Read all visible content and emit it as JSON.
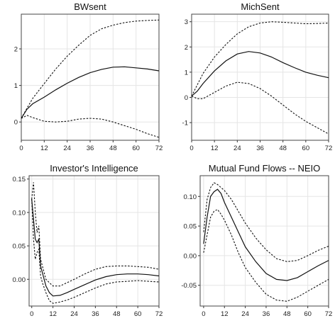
{
  "chart_data": [
    {
      "type": "line",
      "title": "BWsent",
      "x": [
        0,
        3,
        6,
        12,
        18,
        24,
        30,
        36,
        42,
        48,
        54,
        60,
        66,
        72
      ],
      "xlim": [
        0,
        72
      ],
      "ylim": [
        -0.5,
        2.95
      ],
      "xticks": [
        "0",
        "12",
        "24",
        "36",
        "48",
        "60",
        "72"
      ],
      "yticks": [
        "0",
        "1",
        "2"
      ],
      "grid": true,
      "series": [
        {
          "style": "solid",
          "values": [
            0.1,
            0.35,
            0.5,
            0.68,
            0.88,
            1.06,
            1.22,
            1.35,
            1.44,
            1.5,
            1.51,
            1.48,
            1.45,
            1.4
          ]
        },
        {
          "style": "dashed",
          "values": [
            0.1,
            0.38,
            0.65,
            1.05,
            1.45,
            1.8,
            2.1,
            2.37,
            2.55,
            2.65,
            2.72,
            2.76,
            2.78,
            2.79
          ]
        },
        {
          "style": "dashed",
          "values": [
            0.1,
            0.18,
            0.12,
            0.02,
            0.0,
            0.02,
            0.08,
            0.1,
            0.08,
            0.0,
            -0.1,
            -0.2,
            -0.32,
            -0.42
          ]
        }
      ]
    },
    {
      "type": "line",
      "title": "MichSent",
      "x": [
        0,
        3,
        6,
        12,
        18,
        24,
        30,
        36,
        42,
        48,
        54,
        60,
        66,
        72
      ],
      "xlim": [
        0,
        72
      ],
      "ylim": [
        -1.7,
        3.3
      ],
      "xticks": [
        "0",
        "12",
        "24",
        "36",
        "48",
        "60",
        "72"
      ],
      "yticks": [
        "-1",
        "0",
        "1",
        "2",
        "3"
      ],
      "grid": true,
      "series": [
        {
          "style": "solid",
          "values": [
            0.05,
            0.25,
            0.55,
            1.05,
            1.45,
            1.72,
            1.82,
            1.76,
            1.6,
            1.38,
            1.18,
            1.0,
            0.88,
            0.78
          ]
        },
        {
          "style": "dashed",
          "values": [
            0.05,
            0.5,
            0.95,
            1.6,
            2.1,
            2.52,
            2.8,
            2.95,
            3.0,
            2.98,
            2.95,
            2.92,
            2.93,
            2.95
          ]
        },
        {
          "style": "dashed",
          "values": [
            0.05,
            -0.05,
            -0.05,
            0.2,
            0.45,
            0.6,
            0.55,
            0.35,
            0.05,
            -0.3,
            -0.65,
            -0.95,
            -1.2,
            -1.45
          ]
        }
      ]
    },
    {
      "type": "line",
      "title": "Investor's Intelligence",
      "x": [
        0,
        1,
        2,
        3,
        4,
        5,
        6,
        8,
        10,
        12,
        16,
        20,
        24,
        30,
        36,
        42,
        48,
        54,
        60,
        66,
        72
      ],
      "xlim": [
        -1.5,
        72
      ],
      "ylim": [
        -0.04,
        0.155
      ],
      "xticks": [
        "0",
        "12",
        "24",
        "36",
        "48",
        "60",
        "72"
      ],
      "yticks": [
        "0.00",
        "0.05",
        "0.10",
        "0.15"
      ],
      "grid": true,
      "series": [
        {
          "style": "solid",
          "values": [
            0.12,
            0.09,
            0.06,
            0.055,
            0.06,
            0.02,
            0.01,
            -0.01,
            -0.02,
            -0.025,
            -0.024,
            -0.02,
            -0.015,
            -0.008,
            -0.001,
            0.004,
            0.007,
            0.008,
            0.008,
            0.007,
            0.005
          ]
        },
        {
          "style": "dashed",
          "values": [
            0.12,
            0.145,
            0.1,
            0.07,
            0.08,
            0.03,
            0.02,
            0.0,
            -0.005,
            -0.01,
            -0.01,
            -0.005,
            0.0,
            0.008,
            0.015,
            0.019,
            0.02,
            0.02,
            0.019,
            0.018,
            0.015
          ]
        },
        {
          "style": "dashed",
          "values": [
            0.12,
            0.06,
            0.03,
            0.04,
            0.045,
            0.005,
            -0.005,
            -0.02,
            -0.032,
            -0.036,
            -0.034,
            -0.031,
            -0.027,
            -0.02,
            -0.013,
            -0.007,
            -0.004,
            -0.003,
            -0.002,
            -0.003,
            -0.004
          ]
        }
      ]
    },
    {
      "type": "line",
      "title": "Mutual Fund Flows -- NEIO",
      "x": [
        0,
        2,
        4,
        6,
        8,
        10,
        12,
        16,
        20,
        24,
        30,
        36,
        42,
        48,
        54,
        60,
        66,
        72
      ],
      "xlim": [
        -2,
        72
      ],
      "ylim": [
        -0.085,
        0.135
      ],
      "xticks": [
        "0",
        "12",
        "24",
        "36",
        "48",
        "60",
        "72"
      ],
      "yticks": [
        "-0.05",
        "0.00",
        "0.05",
        "0.10"
      ],
      "grid": true,
      "series": [
        {
          "style": "solid",
          "values": [
            0.02,
            0.065,
            0.1,
            0.108,
            0.112,
            0.105,
            0.09,
            0.065,
            0.04,
            0.015,
            -0.01,
            -0.03,
            -0.04,
            -0.042,
            -0.037,
            -0.027,
            -0.017,
            -0.008
          ]
        },
        {
          "style": "dashed",
          "values": [
            0.04,
            0.095,
            0.115,
            0.123,
            0.12,
            0.115,
            0.11,
            0.095,
            0.075,
            0.055,
            0.03,
            0.01,
            -0.005,
            -0.01,
            -0.008,
            0.0,
            0.009,
            0.016
          ]
        },
        {
          "style": "dashed",
          "values": [
            0.005,
            0.035,
            0.065,
            0.075,
            0.078,
            0.07,
            0.06,
            0.035,
            0.005,
            -0.02,
            -0.045,
            -0.065,
            -0.075,
            -0.077,
            -0.07,
            -0.06,
            -0.05,
            -0.04
          ]
        }
      ]
    }
  ]
}
